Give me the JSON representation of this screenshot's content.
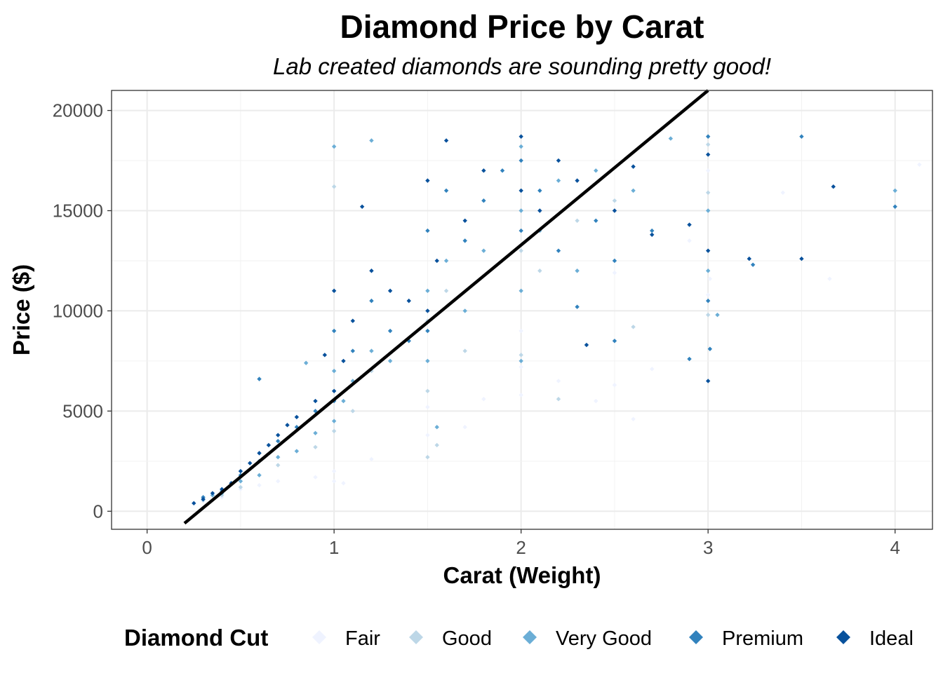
{
  "chart_data": {
    "type": "scatter",
    "title": "Diamond Price by Carat",
    "subtitle": "Lab created diamonds are sounding pretty good!",
    "xlabel": "Carat (Weight)",
    "ylabel": "Price ($)",
    "xlim": [
      -0.19,
      4.2
    ],
    "ylim": [
      -900,
      21000
    ],
    "x_ticks": [
      0,
      1,
      2,
      3,
      4
    ],
    "y_ticks": [
      0,
      5000,
      10000,
      15000,
      20000
    ],
    "grid": true,
    "legend": {
      "title": "Diamond Cut",
      "position": "bottom",
      "entries": [
        {
          "label": "Fair",
          "color": "#eff3ff"
        },
        {
          "label": "Good",
          "color": "#bdd7e7"
        },
        {
          "label": "Very Good",
          "color": "#6baed6"
        },
        {
          "label": "Premium",
          "color": "#3182bd"
        },
        {
          "label": "Ideal",
          "color": "#08519c"
        }
      ]
    },
    "trend_line": {
      "color": "#000000",
      "points": [
        [
          0.2,
          -600
        ],
        [
          3.0,
          21000
        ]
      ]
    },
    "series": [
      {
        "name": "Fair",
        "color": "#eff3ff",
        "points": [
          [
            0.3,
            500
          ],
          [
            0.4,
            700
          ],
          [
            0.5,
            1100
          ],
          [
            0.6,
            1300
          ],
          [
            0.7,
            1500
          ],
          [
            0.9,
            1700
          ],
          [
            1.0,
            2000
          ],
          [
            1.0,
            1500
          ],
          [
            1.2,
            2600
          ],
          [
            1.5,
            3800
          ],
          [
            1.5,
            5200
          ],
          [
            1.8,
            5600
          ],
          [
            2.0,
            5800
          ],
          [
            2.0,
            7200
          ],
          [
            2.0,
            9000
          ],
          [
            2.2,
            6500
          ],
          [
            2.4,
            5500
          ],
          [
            2.5,
            6300
          ],
          [
            2.6,
            4600
          ],
          [
            3.0,
            17000
          ],
          [
            3.0,
            10800
          ],
          [
            3.01,
            11600
          ],
          [
            2.9,
            13500
          ],
          [
            3.4,
            15900
          ],
          [
            3.65,
            11600
          ],
          [
            4.13,
            17300
          ],
          [
            2.5,
            11900
          ],
          [
            2.7,
            7100
          ],
          [
            1.7,
            4200
          ],
          [
            1.05,
            1400
          ]
        ]
      },
      {
        "name": "Good",
        "color": "#bdd7e7",
        "points": [
          [
            0.3,
            550
          ],
          [
            0.4,
            800
          ],
          [
            0.5,
            1200
          ],
          [
            0.7,
            2300
          ],
          [
            0.9,
            3200
          ],
          [
            1.0,
            4000
          ],
          [
            1.0,
            6000
          ],
          [
            1.1,
            5000
          ],
          [
            1.2,
            7000
          ],
          [
            1.5,
            6000
          ],
          [
            1.5,
            9500
          ],
          [
            1.6,
            11000
          ],
          [
            1.7,
            8000
          ],
          [
            2.0,
            7800
          ],
          [
            2.0,
            13000
          ],
          [
            2.0,
            16000
          ],
          [
            2.1,
            12000
          ],
          [
            2.3,
            14500
          ],
          [
            2.5,
            15500
          ],
          [
            3.0,
            18300
          ],
          [
            3.0,
            15900
          ],
          [
            3.0,
            9800
          ],
          [
            1.0,
            16200
          ],
          [
            1.55,
            3300
          ],
          [
            1.5,
            2700
          ],
          [
            2.2,
            5600
          ],
          [
            2.6,
            9200
          ]
        ]
      },
      {
        "name": "Very Good",
        "color": "#6baed6",
        "points": [
          [
            0.3,
            600
          ],
          [
            0.35,
            800
          ],
          [
            0.4,
            900
          ],
          [
            0.5,
            1500
          ],
          [
            0.6,
            1800
          ],
          [
            0.7,
            2700
          ],
          [
            0.8,
            3000
          ],
          [
            0.9,
            3900
          ],
          [
            1.0,
            4500
          ],
          [
            1.0,
            7000
          ],
          [
            1.05,
            5500
          ],
          [
            1.1,
            6500
          ],
          [
            1.2,
            8000
          ],
          [
            1.3,
            7500
          ],
          [
            1.5,
            7500
          ],
          [
            1.5,
            11000
          ],
          [
            1.6,
            12500
          ],
          [
            1.7,
            10000
          ],
          [
            1.8,
            13000
          ],
          [
            2.0,
            11000
          ],
          [
            2.0,
            15000
          ],
          [
            2.0,
            18200
          ],
          [
            2.1,
            14000
          ],
          [
            2.2,
            16500
          ],
          [
            2.3,
            12000
          ],
          [
            2.4,
            17000
          ],
          [
            2.6,
            16000
          ],
          [
            2.8,
            18600
          ],
          [
            3.0,
            15000
          ],
          [
            3.0,
            12000
          ],
          [
            3.05,
            9800
          ],
          [
            4.0,
            16000
          ],
          [
            1.0,
            18200
          ],
          [
            1.2,
            18500
          ],
          [
            0.85,
            7400
          ],
          [
            1.55,
            4200
          ],
          [
            2.0,
            7500
          ]
        ]
      },
      {
        "name": "Premium",
        "color": "#3182bd",
        "points": [
          [
            0.3,
            700
          ],
          [
            0.4,
            1000
          ],
          [
            0.5,
            1800
          ],
          [
            0.6,
            2500
          ],
          [
            0.7,
            3500
          ],
          [
            0.8,
            4200
          ],
          [
            0.9,
            5000
          ],
          [
            1.0,
            5500
          ],
          [
            1.0,
            9000
          ],
          [
            1.1,
            8000
          ],
          [
            1.2,
            10500
          ],
          [
            1.3,
            9000
          ],
          [
            1.4,
            8500
          ],
          [
            1.5,
            9000
          ],
          [
            1.5,
            14000
          ],
          [
            1.6,
            16000
          ],
          [
            1.7,
            13500
          ],
          [
            1.8,
            15500
          ],
          [
            2.0,
            14000
          ],
          [
            2.0,
            17500
          ],
          [
            2.1,
            16000
          ],
          [
            2.2,
            13000
          ],
          [
            2.4,
            14500
          ],
          [
            2.5,
            12500
          ],
          [
            2.7,
            14000
          ],
          [
            3.0,
            18700
          ],
          [
            3.0,
            10500
          ],
          [
            3.01,
            8100
          ],
          [
            3.24,
            12300
          ],
          [
            3.5,
            18700
          ],
          [
            4.0,
            15200
          ],
          [
            2.9,
            7600
          ],
          [
            2.5,
            8500
          ],
          [
            2.3,
            10200
          ],
          [
            1.9,
            17000
          ],
          [
            0.6,
            6600
          ]
        ]
      },
      {
        "name": "Ideal",
        "color": "#08519c",
        "points": [
          [
            0.25,
            400
          ],
          [
            0.3,
            600
          ],
          [
            0.35,
            900
          ],
          [
            0.4,
            1100
          ],
          [
            0.45,
            1400
          ],
          [
            0.5,
            2000
          ],
          [
            0.55,
            2400
          ],
          [
            0.6,
            2900
          ],
          [
            0.65,
            3300
          ],
          [
            0.7,
            3800
          ],
          [
            0.75,
            4300
          ],
          [
            0.8,
            4700
          ],
          [
            0.9,
            5500
          ],
          [
            1.0,
            6000
          ],
          [
            1.0,
            11000
          ],
          [
            1.05,
            7500
          ],
          [
            1.1,
            9500
          ],
          [
            1.2,
            12000
          ],
          [
            1.3,
            11000
          ],
          [
            1.4,
            10500
          ],
          [
            1.5,
            10000
          ],
          [
            1.5,
            16500
          ],
          [
            1.55,
            12500
          ],
          [
            1.6,
            18500
          ],
          [
            1.7,
            14500
          ],
          [
            1.8,
            17000
          ],
          [
            2.0,
            16000
          ],
          [
            2.0,
            18700
          ],
          [
            2.1,
            15000
          ],
          [
            2.2,
            17500
          ],
          [
            2.3,
            16500
          ],
          [
            2.5,
            15000
          ],
          [
            2.6,
            17200
          ],
          [
            3.0,
            17800
          ],
          [
            3.0,
            13000
          ],
          [
            3.0,
            6500
          ],
          [
            3.22,
            12600
          ],
          [
            3.5,
            12600
          ],
          [
            3.67,
            16200
          ],
          [
            2.7,
            13800
          ],
          [
            2.9,
            14300
          ],
          [
            2.35,
            8300
          ],
          [
            1.15,
            15200
          ],
          [
            0.95,
            7800
          ]
        ]
      }
    ]
  }
}
